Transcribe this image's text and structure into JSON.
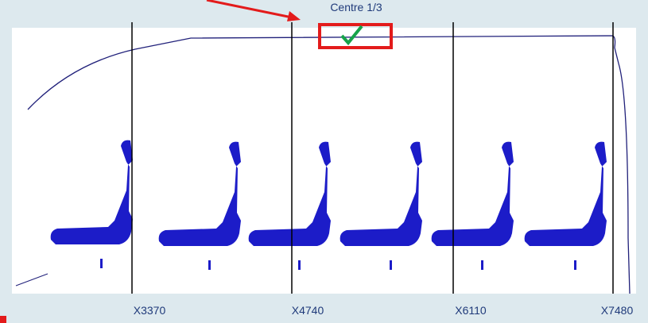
{
  "header": {
    "label": "Centre 1/3"
  },
  "axis": {
    "labels": [
      "X3370",
      "X4740",
      "X6110",
      "X7480"
    ]
  }
}
